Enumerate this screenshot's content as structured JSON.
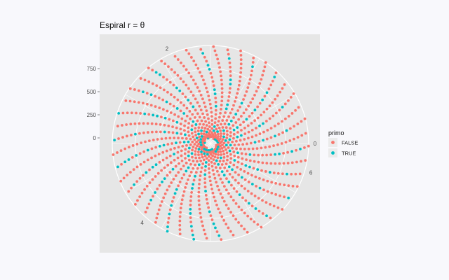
{
  "chart_data": {
    "type": "scatter",
    "coord": "polar",
    "title": "Espiral r = θ",
    "theta_ticks": [
      "0",
      "2",
      "4",
      "6"
    ],
    "theta_period": 6.2832,
    "r_ticks": [
      "0",
      "250",
      "500",
      "750"
    ],
    "r_range": [
      0,
      1000
    ],
    "point_count": 1000,
    "series": [
      {
        "name": "FALSE",
        "color": "#F8766D"
      },
      {
        "name": "TRUE",
        "color": "#00BFC4"
      }
    ],
    "legend": {
      "title": "primo",
      "position": "right"
    },
    "background": "#e6e6e6",
    "grid": true
  }
}
